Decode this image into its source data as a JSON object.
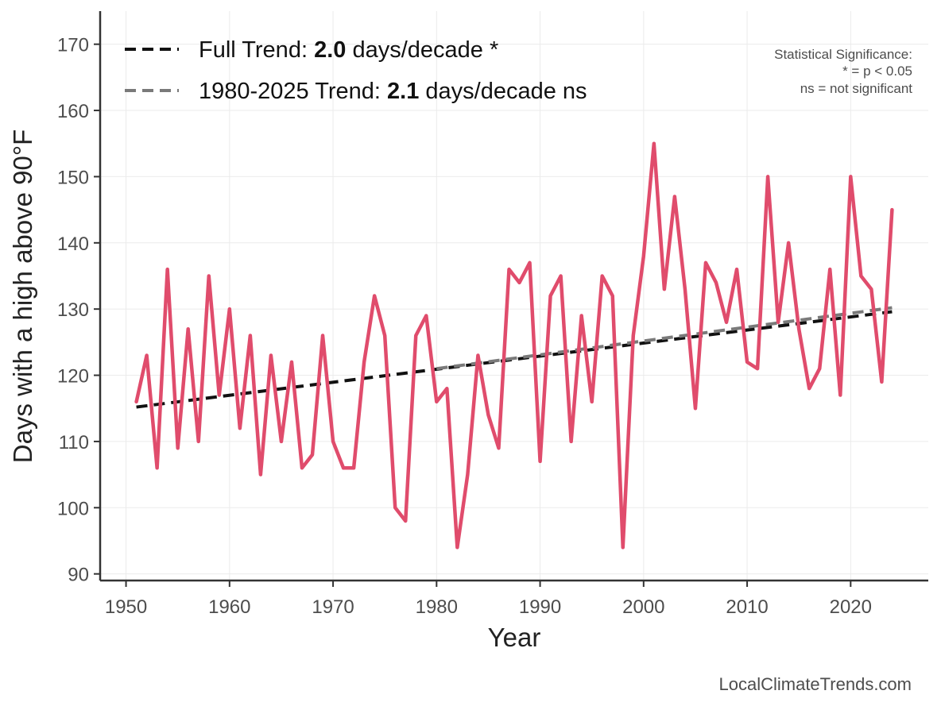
{
  "chart_data": {
    "type": "line",
    "xlabel": "Year",
    "ylabel": "Days with a high above 90°F",
    "xlim": [
      1947.5,
      2027.5
    ],
    "ylim": [
      89,
      175
    ],
    "x_ticks": [
      1950,
      1960,
      1970,
      1980,
      1990,
      2000,
      2010,
      2020
    ],
    "y_ticks": [
      90,
      100,
      110,
      120,
      130,
      140,
      150,
      160,
      170
    ],
    "grid": true,
    "series": [
      {
        "name": "Days above 90°F",
        "color": "#e04c6c",
        "x": [
          1951,
          1952,
          1953,
          1954,
          1955,
          1956,
          1957,
          1958,
          1959,
          1960,
          1961,
          1962,
          1963,
          1964,
          1965,
          1966,
          1967,
          1968,
          1969,
          1970,
          1971,
          1972,
          1973,
          1974,
          1975,
          1976,
          1977,
          1978,
          1979,
          1980,
          1981,
          1982,
          1983,
          1984,
          1985,
          1986,
          1987,
          1988,
          1989,
          1990,
          1991,
          1992,
          1993,
          1994,
          1995,
          1996,
          1997,
          1998,
          1999,
          2000,
          2001,
          2002,
          2003,
          2004,
          2005,
          2006,
          2007,
          2008,
          2009,
          2010,
          2011,
          2012,
          2013,
          2014,
          2015,
          2016,
          2017,
          2018,
          2019,
          2020,
          2021,
          2022,
          2023,
          2024
        ],
        "values": [
          116,
          123,
          106,
          136,
          109,
          127,
          110,
          135,
          117,
          130,
          112,
          126,
          105,
          123,
          110,
          122,
          106,
          108,
          126,
          110,
          106,
          106,
          122,
          132,
          126,
          100,
          98,
          126,
          129,
          116,
          118,
          94,
          105,
          123,
          114,
          109,
          136,
          134,
          137,
          107,
          132,
          135,
          110,
          129,
          116,
          135,
          132,
          94,
          126,
          138,
          155,
          133,
          147,
          133,
          115,
          137,
          134,
          128,
          136,
          122,
          121,
          150,
          128,
          140,
          127,
          118,
          121,
          136,
          117,
          150,
          135,
          133,
          119,
          145
        ]
      }
    ],
    "trends": [
      {
        "name": "Full Trend",
        "color": "#111111",
        "x": [
          1951,
          2024
        ],
        "y": [
          115.2,
          129.6
        ]
      },
      {
        "name": "1980-2025 Trend",
        "color": "#7a7a7a",
        "x": [
          1980,
          2024
        ],
        "y": [
          121.0,
          130.2
        ]
      }
    ]
  },
  "legend": {
    "full": {
      "prefix": "Full Trend: ",
      "value": "2.0",
      "suffix": " days/decade *"
    },
    "recent": {
      "prefix": "1980-2025 Trend: ",
      "value": "2.1",
      "suffix": " days/decade ns"
    }
  },
  "significance_note": {
    "line1": "Statistical Significance:",
    "line2": "* = p < 0.05",
    "line3": "ns = not significant"
  },
  "credit": "LocalClimateTrends.com"
}
